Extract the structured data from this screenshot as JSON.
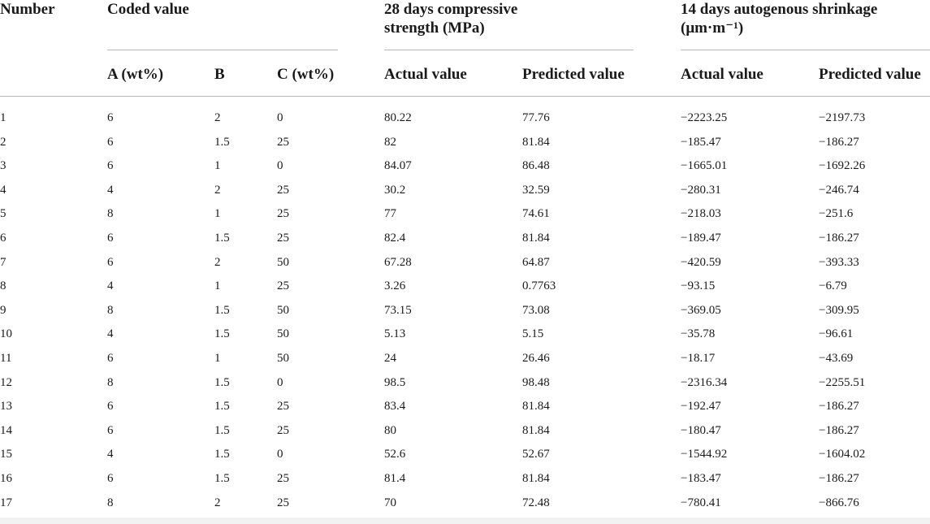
{
  "headers": {
    "number": "Number",
    "coded_value": "Coded value",
    "compressive_line1": "28 days compressive",
    "compressive_line2": "strength (MPa)",
    "shrinkage_line1": "14 days autogenous shrinkage",
    "shrinkage_line2": "(μm·m⁻¹)",
    "sub": {
      "a": "A (wt%)",
      "b": "B",
      "c": "C (wt%)",
      "cs_actual": "Actual value",
      "cs_predicted": "Predicted value",
      "sh_actual": "Actual value",
      "sh_predicted": "Predicted value"
    }
  },
  "rows": [
    [
      "1",
      "6",
      "2",
      "0",
      "80.22",
      "77.76",
      "−2223.25",
      "−2197.73"
    ],
    [
      "2",
      "6",
      "1.5",
      "25",
      "82",
      "81.84",
      "−185.47",
      "−186.27"
    ],
    [
      "3",
      "6",
      "1",
      "0",
      "84.07",
      "86.48",
      "−1665.01",
      "−1692.26"
    ],
    [
      "4",
      "4",
      "2",
      "25",
      "30.2",
      "32.59",
      "−280.31",
      "−246.74"
    ],
    [
      "5",
      "8",
      "1",
      "25",
      "77",
      "74.61",
      "−218.03",
      "−251.6"
    ],
    [
      "6",
      "6",
      "1.5",
      "25",
      "82.4",
      "81.84",
      "−189.47",
      "−186.27"
    ],
    [
      "7",
      "6",
      "2",
      "50",
      "67.28",
      "64.87",
      "−420.59",
      "−393.33"
    ],
    [
      "8",
      "4",
      "1",
      "25",
      "3.26",
      "0.7763",
      "−93.15",
      "−6.79"
    ],
    [
      "9",
      "8",
      "1.5",
      "50",
      "73.15",
      "73.08",
      "−369.05",
      "−309.95"
    ],
    [
      "10",
      "4",
      "1.5",
      "50",
      "5.13",
      "5.15",
      "−35.78",
      "−96.61"
    ],
    [
      "11",
      "6",
      "1",
      "50",
      "24",
      "26.46",
      "−18.17",
      "−43.69"
    ],
    [
      "12",
      "8",
      "1.5",
      "0",
      "98.5",
      "98.48",
      "−2316.34",
      "−2255.51"
    ],
    [
      "13",
      "6",
      "1.5",
      "25",
      "83.4",
      "81.84",
      "−192.47",
      "−186.27"
    ],
    [
      "14",
      "6",
      "1.5",
      "25",
      "80",
      "81.84",
      "−180.47",
      "−186.27"
    ],
    [
      "15",
      "4",
      "1.5",
      "0",
      "52.6",
      "52.67",
      "−1544.92",
      "−1604.02"
    ],
    [
      "16",
      "6",
      "1.5",
      "25",
      "81.4",
      "81.84",
      "−183.47",
      "−186.27"
    ],
    [
      "17",
      "8",
      "2",
      "25",
      "70",
      "72.48",
      "−780.41",
      "−866.76"
    ]
  ]
}
